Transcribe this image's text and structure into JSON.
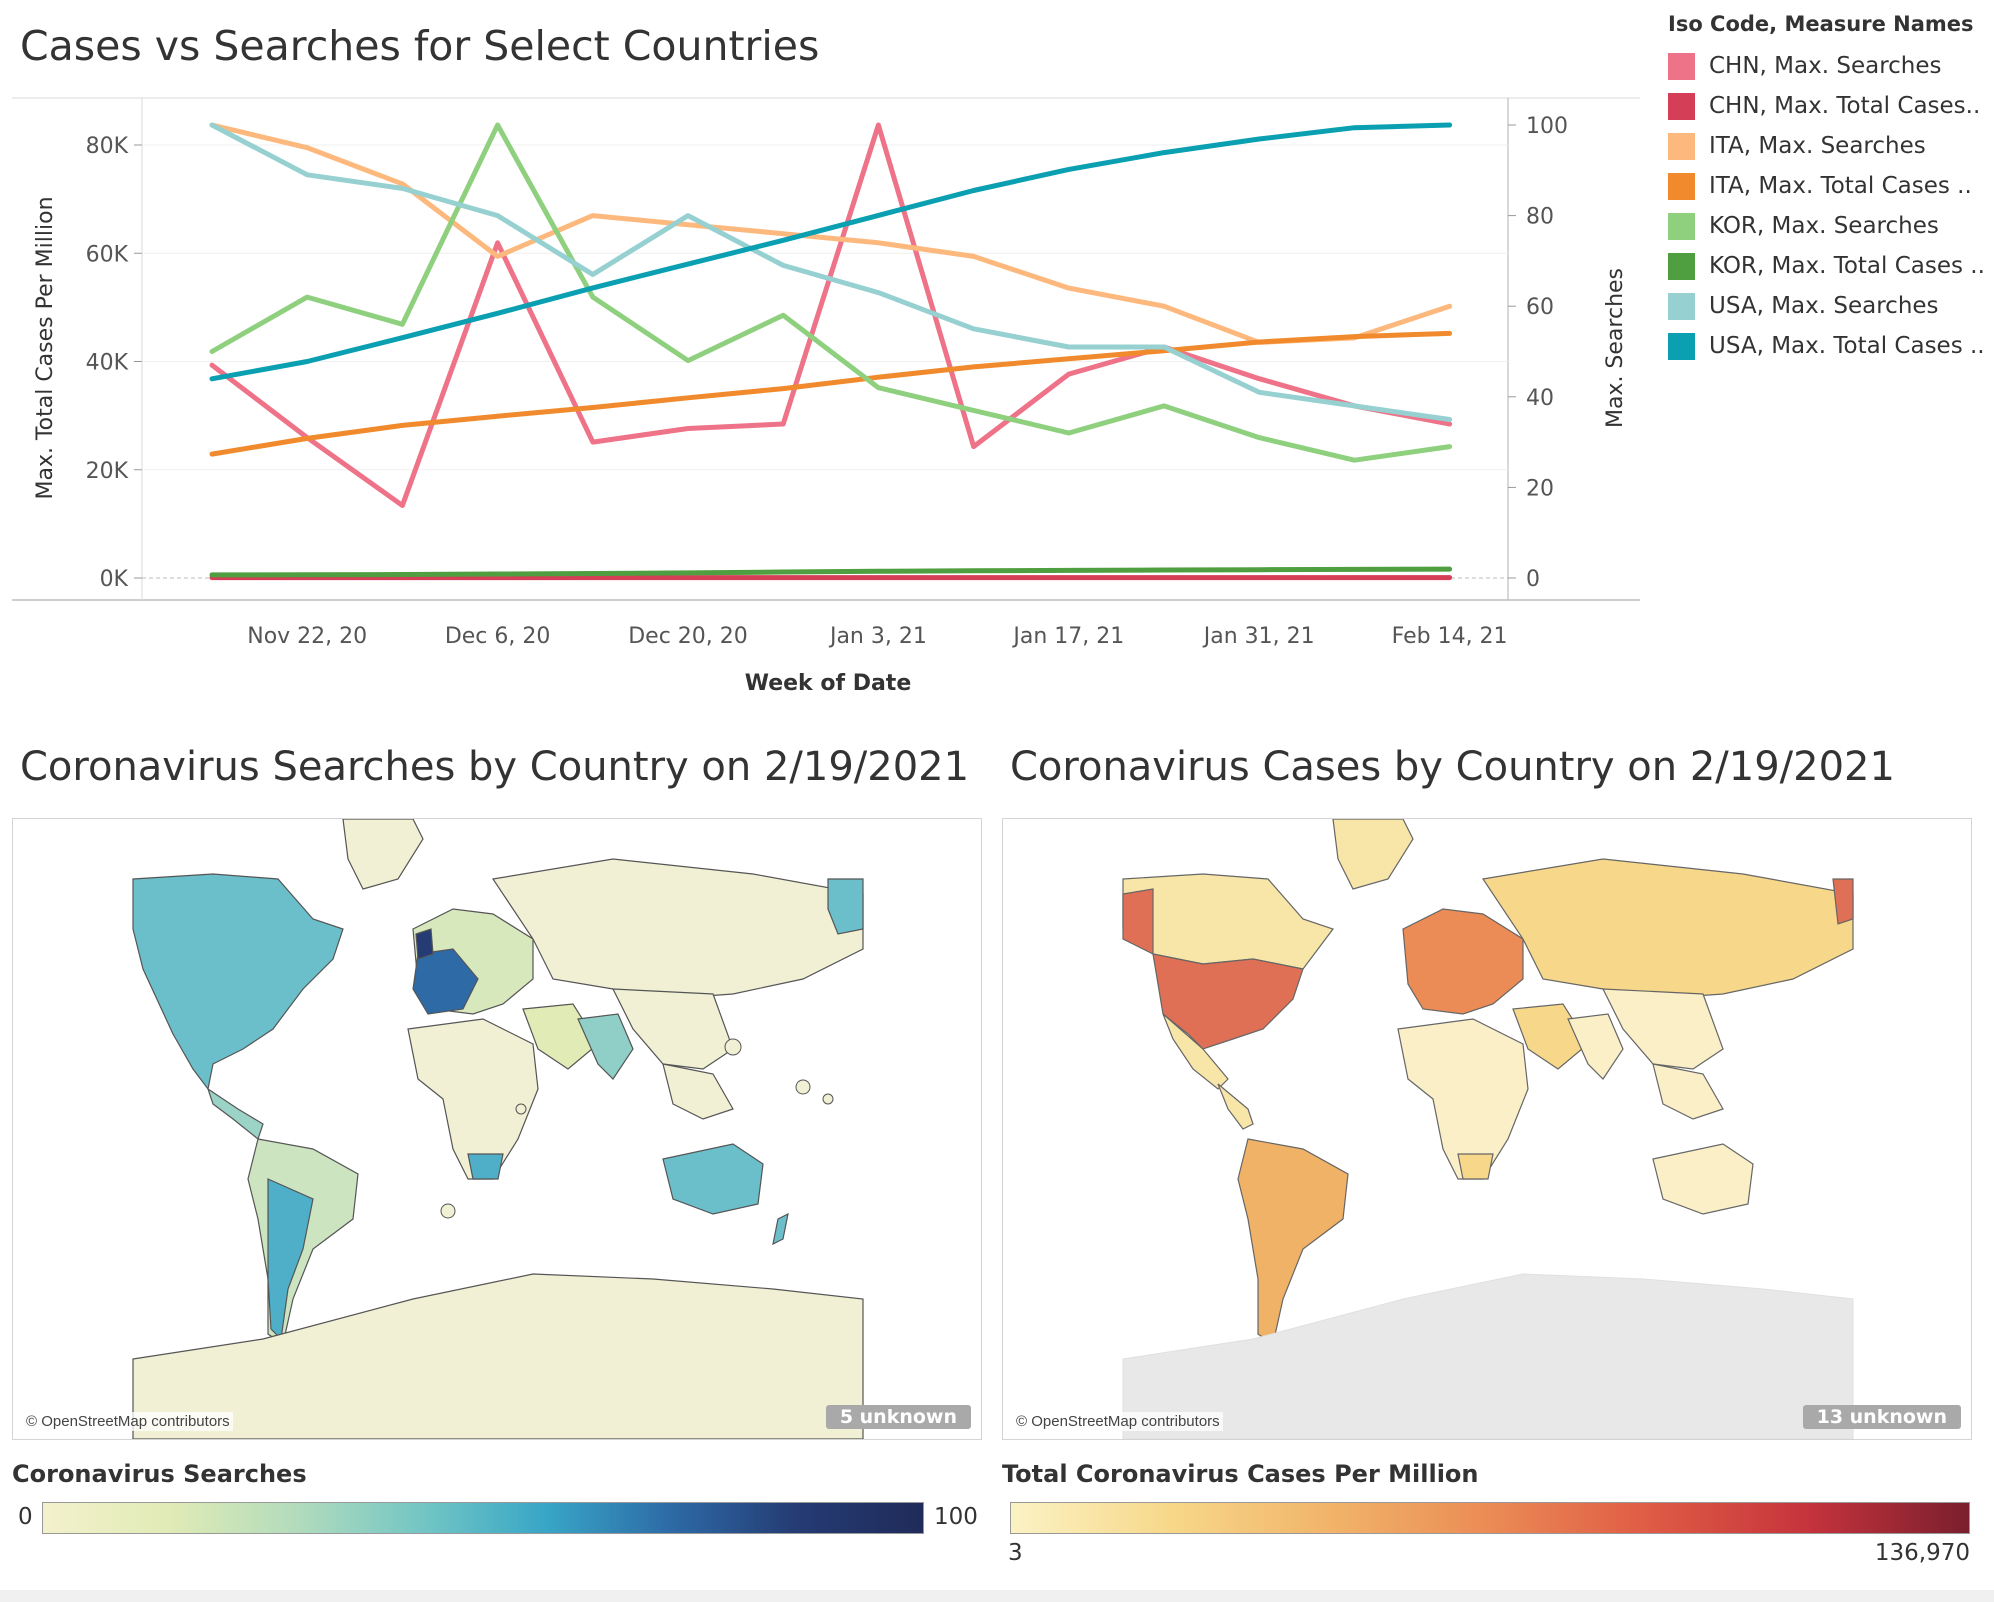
{
  "chart_data": {
    "type": "line",
    "title": "Cases vs Searches for Select Countries",
    "xlabel": "Week of Date",
    "ylabel_left": "Max. Total Cases Per Million",
    "ylabel_right": "Max. Searches",
    "x": [
      "2020-11-15",
      "2020-11-22",
      "2020-11-29",
      "2020-12-06",
      "2020-12-13",
      "2020-12-20",
      "2020-12-27",
      "2021-01-03",
      "2021-01-10",
      "2021-01-17",
      "2021-01-24",
      "2021-01-31",
      "2021-02-07",
      "2021-02-14"
    ],
    "x_tick_labels": [
      "Nov 22, 20",
      "Dec 6, 20",
      "Dec 20, 20",
      "Jan 3, 21",
      "Jan 17, 21",
      "Jan 31, 21",
      "Feb 14, 21"
    ],
    "ylim_left": [
      0,
      84000
    ],
    "left_ticks": [
      "80K",
      "60K",
      "40K",
      "20K",
      "0K"
    ],
    "ylim_right": [
      0,
      100
    ],
    "right_ticks": [
      "100",
      "80",
      "60",
      "40",
      "20",
      "0"
    ],
    "legend_title": "Iso Code, Measure Names",
    "legend_position": "right",
    "series": [
      {
        "name": "CHN, Max. Searches",
        "axis": "right",
        "color": "#ee7288",
        "values": [
          47,
          31,
          16,
          74,
          30,
          33,
          34,
          100,
          29,
          45,
          51,
          44,
          38,
          34
        ]
      },
      {
        "name": "CHN, Max. Total Cases..",
        "axis": "left",
        "color": "#d43e56",
        "values": [
          65,
          65,
          65,
          65,
          65,
          66,
          66,
          66,
          66,
          66,
          67,
          67,
          67,
          67
        ]
      },
      {
        "name": "ITA, Max. Searches",
        "axis": "right",
        "color": "#fdb97d",
        "values": [
          100,
          95,
          87,
          71,
          80,
          78,
          76,
          74,
          71,
          64,
          60,
          52,
          53,
          60
        ]
      },
      {
        "name": "ITA, Max. Total Cases ..",
        "axis": "left",
        "color": "#f08a2c",
        "values": [
          22900,
          25800,
          28200,
          29900,
          31500,
          33300,
          35000,
          37100,
          39000,
          40500,
          42000,
          43600,
          44600,
          45200
        ]
      },
      {
        "name": "KOR, Max. Searches",
        "axis": "right",
        "color": "#8fd07f",
        "values": [
          50,
          62,
          56,
          100,
          62,
          48,
          58,
          42,
          37,
          32,
          38,
          31,
          26,
          29
        ]
      },
      {
        "name": "KOR, Max. Total Cases ..",
        "axis": "left",
        "color": "#4f9e3f",
        "values": [
          570,
          600,
          650,
          730,
          830,
          950,
          1100,
          1240,
          1330,
          1400,
          1470,
          1530,
          1590,
          1650
        ]
      },
      {
        "name": "USA, Max. Searches",
        "axis": "right",
        "color": "#96d0d0",
        "values": [
          100,
          89,
          86,
          80,
          67,
          80,
          69,
          63,
          55,
          51,
          51,
          41,
          38,
          35
        ]
      },
      {
        "name": "USA, Max. Total Cases ..",
        "axis": "left",
        "color": "#0aa0b2",
        "values": [
          36800,
          40000,
          44400,
          48900,
          53600,
          58000,
          62400,
          67000,
          71600,
          75500,
          78600,
          81100,
          83200,
          83700
        ]
      }
    ]
  },
  "maps": {
    "searches": {
      "title": "Coronavirus Searches by Country on 2/19/2021",
      "credit": "© OpenStreetMap contributors",
      "unknown": "5 unknown",
      "scale_title": "Coronavirus Searches",
      "scale_min": "0",
      "scale_max": "100",
      "colors": {
        "ocean": "#ffffff",
        "default": "#f1f0d4",
        "high": "#253b73",
        "mid": "#6bbfcb",
        "low": "#cde4c0"
      }
    },
    "cases": {
      "title": "Coronavirus Cases by Country on 2/19/2021",
      "credit": "© OpenStreetMap contributors",
      "unknown": "13 unknown",
      "scale_title": "Total Coronavirus Cases Per Million",
      "scale_min": "3",
      "scale_max": "136,970",
      "colors": {
        "ocean": "#ffffff",
        "default": "#f8e6a8",
        "high": "#e07055",
        "mid": "#f0b266",
        "low": "#fbefc8",
        "none": "#e8e8e8"
      }
    }
  }
}
